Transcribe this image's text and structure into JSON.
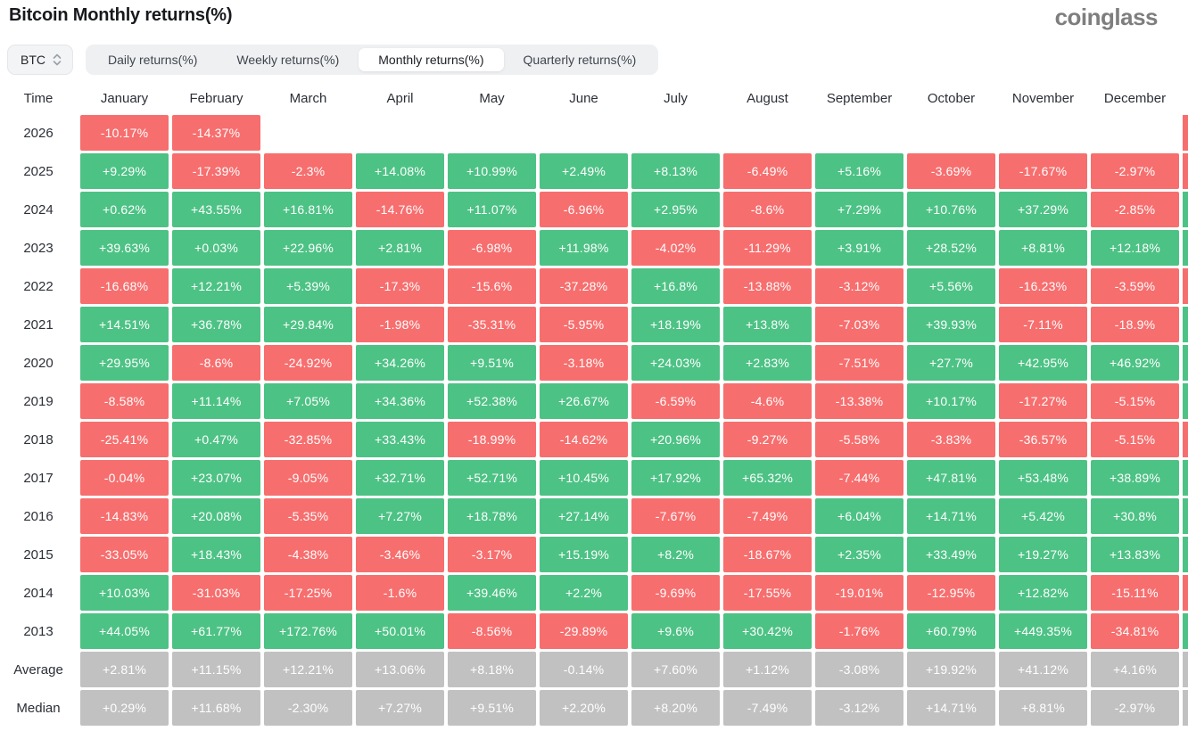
{
  "header": {
    "title": "Bitcoin Monthly returns(%)",
    "logo": "coinglass"
  },
  "toolbar": {
    "symbol": "BTC",
    "updown_icon": "up-down-chevrons",
    "tabs": [
      {
        "label": "Daily returns(%)",
        "active": false
      },
      {
        "label": "Weekly returns(%)",
        "active": false
      },
      {
        "label": "Monthly returns(%)",
        "active": true
      },
      {
        "label": "Quarterly returns(%)",
        "active": false
      }
    ]
  },
  "colors": {
    "positive": "#4DC285",
    "negative": "#F76E6E",
    "neutral": "#C1C1C1"
  },
  "table": {
    "corner_label": "Time",
    "months": [
      "January",
      "February",
      "March",
      "April",
      "May",
      "June",
      "July",
      "August",
      "September",
      "October",
      "November",
      "December"
    ],
    "rows": [
      {
        "label": "2026",
        "kind": "year",
        "edge": "neg",
        "cells": [
          "-10.17%",
          "-14.37%",
          null,
          null,
          null,
          null,
          null,
          null,
          null,
          null,
          null,
          null
        ]
      },
      {
        "label": "2025",
        "kind": "year",
        "edge": "neg",
        "cells": [
          "+9.29%",
          "-17.39%",
          "-2.3%",
          "+14.08%",
          "+10.99%",
          "+2.49%",
          "+8.13%",
          "-6.49%",
          "+5.16%",
          "-3.69%",
          "-17.67%",
          "-2.97%"
        ]
      },
      {
        "label": "2024",
        "kind": "year",
        "edge": "pos",
        "cells": [
          "+0.62%",
          "+43.55%",
          "+16.81%",
          "-14.76%",
          "+11.07%",
          "-6.96%",
          "+2.95%",
          "-8.6%",
          "+7.29%",
          "+10.76%",
          "+37.29%",
          "-2.85%"
        ]
      },
      {
        "label": "2023",
        "kind": "year",
        "edge": "pos",
        "cells": [
          "+39.63%",
          "+0.03%",
          "+22.96%",
          "+2.81%",
          "-6.98%",
          "+11.98%",
          "-4.02%",
          "-11.29%",
          "+3.91%",
          "+28.52%",
          "+8.81%",
          "+12.18%"
        ]
      },
      {
        "label": "2022",
        "kind": "year",
        "edge": "neg",
        "cells": [
          "-16.68%",
          "+12.21%",
          "+5.39%",
          "-17.3%",
          "-15.6%",
          "-37.28%",
          "+16.8%",
          "-13.88%",
          "-3.12%",
          "+5.56%",
          "-16.23%",
          "-3.59%"
        ]
      },
      {
        "label": "2021",
        "kind": "year",
        "edge": "pos",
        "cells": [
          "+14.51%",
          "+36.78%",
          "+29.84%",
          "-1.98%",
          "-35.31%",
          "-5.95%",
          "+18.19%",
          "+13.8%",
          "-7.03%",
          "+39.93%",
          "-7.11%",
          "-18.9%"
        ]
      },
      {
        "label": "2020",
        "kind": "year",
        "edge": "pos",
        "cells": [
          "+29.95%",
          "-8.6%",
          "-24.92%",
          "+34.26%",
          "+9.51%",
          "-3.18%",
          "+24.03%",
          "+2.83%",
          "-7.51%",
          "+27.7%",
          "+42.95%",
          "+46.92%"
        ]
      },
      {
        "label": "2019",
        "kind": "year",
        "edge": "pos",
        "cells": [
          "-8.58%",
          "+11.14%",
          "+7.05%",
          "+34.36%",
          "+52.38%",
          "+26.67%",
          "-6.59%",
          "-4.6%",
          "-13.38%",
          "+10.17%",
          "-17.27%",
          "-5.15%"
        ]
      },
      {
        "label": "2018",
        "kind": "year",
        "edge": "neg",
        "cells": [
          "-25.41%",
          "+0.47%",
          "-32.85%",
          "+33.43%",
          "-18.99%",
          "-14.62%",
          "+20.96%",
          "-9.27%",
          "-5.58%",
          "-3.83%",
          "-36.57%",
          "-5.15%"
        ]
      },
      {
        "label": "2017",
        "kind": "year",
        "edge": "pos",
        "cells": [
          "-0.04%",
          "+23.07%",
          "-9.05%",
          "+32.71%",
          "+52.71%",
          "+10.45%",
          "+17.92%",
          "+65.32%",
          "-7.44%",
          "+47.81%",
          "+53.48%",
          "+38.89%"
        ]
      },
      {
        "label": "2016",
        "kind": "year",
        "edge": "pos",
        "cells": [
          "-14.83%",
          "+20.08%",
          "-5.35%",
          "+7.27%",
          "+18.78%",
          "+27.14%",
          "-7.67%",
          "-7.49%",
          "+6.04%",
          "+14.71%",
          "+5.42%",
          "+30.8%"
        ]
      },
      {
        "label": "2015",
        "kind": "year",
        "edge": "pos",
        "cells": [
          "-33.05%",
          "+18.43%",
          "-4.38%",
          "-3.46%",
          "-3.17%",
          "+15.19%",
          "+8.2%",
          "-18.67%",
          "+2.35%",
          "+33.49%",
          "+19.27%",
          "+13.83%"
        ]
      },
      {
        "label": "2014",
        "kind": "year",
        "edge": "neg",
        "cells": [
          "+10.03%",
          "-31.03%",
          "-17.25%",
          "-1.6%",
          "+39.46%",
          "+2.2%",
          "-9.69%",
          "-17.55%",
          "-19.01%",
          "-12.95%",
          "+12.82%",
          "-15.11%"
        ]
      },
      {
        "label": "2013",
        "kind": "year",
        "edge": "pos",
        "cells": [
          "+44.05%",
          "+61.77%",
          "+172.76%",
          "+50.01%",
          "-8.56%",
          "-29.89%",
          "+9.6%",
          "+30.42%",
          "-1.76%",
          "+60.79%",
          "+449.35%",
          "-34.81%"
        ]
      },
      {
        "label": "Average",
        "kind": "summary",
        "edge": "avg",
        "cells": [
          "+2.81%",
          "+11.15%",
          "+12.21%",
          "+13.06%",
          "+8.18%",
          "-0.14%",
          "+7.60%",
          "+1.12%",
          "-3.08%",
          "+19.92%",
          "+41.12%",
          "+4.16%"
        ]
      },
      {
        "label": "Median",
        "kind": "summary",
        "edge": "avg",
        "cells": [
          "+0.29%",
          "+11.68%",
          "-2.30%",
          "+7.27%",
          "+9.51%",
          "+2.20%",
          "+8.20%",
          "-7.49%",
          "-3.12%",
          "+14.71%",
          "+8.81%",
          "-2.97%"
        ]
      }
    ]
  }
}
